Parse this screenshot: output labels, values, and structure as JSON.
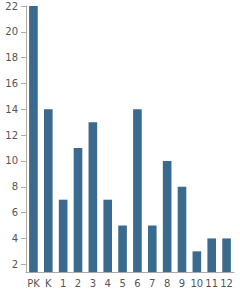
{
  "chart_data": {
    "type": "bar",
    "categories": [
      "PK",
      "K",
      "1",
      "2",
      "3",
      "4",
      "5",
      "6",
      "7",
      "8",
      "9",
      "10",
      "11",
      "12"
    ],
    "values": [
      22,
      14,
      7,
      11,
      13,
      7,
      5,
      14,
      5,
      10,
      8,
      3,
      4,
      4
    ],
    "color": "#3a6a8e",
    "ylim": [
      1.4,
      22
    ],
    "yticks": [
      2,
      4,
      6,
      8,
      10,
      12,
      14,
      16,
      18,
      20,
      22
    ],
    "grid": false
  }
}
